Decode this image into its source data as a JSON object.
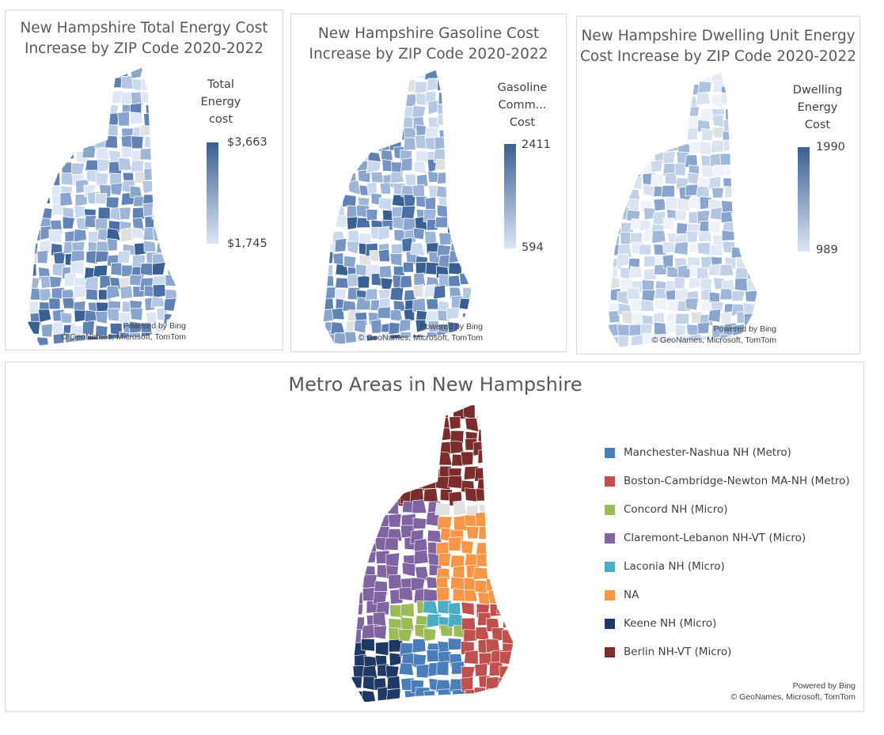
{
  "maps": [
    {
      "title_line1": "New Hampshire Total Energy Cost",
      "title_line2": "Increase by ZIP Code 2020-2022",
      "legend_line1": "Total",
      "legend_line2": "Energy",
      "legend_line3": "cost",
      "legend_max": "$3,663",
      "legend_min": "$1,745",
      "credit_line1": "Powered by Bing",
      "credit_line2": "© GeoNames, Microsoft, TomTom"
    },
    {
      "title_line1": "New Hampshire Gasoline Cost",
      "title_line2": "Increase by ZIP Code 2020-2022",
      "legend_line1": "Gasoline",
      "legend_line2": "Comm...",
      "legend_line3": "Cost",
      "legend_max": "2411",
      "legend_min": "594",
      "credit_line1": "Powered by Bing",
      "credit_line2": "© GeoNames, Microsoft, TomTom"
    },
    {
      "title_line1": "New Hampshire Dwelling Unit Energy",
      "title_line2": "Cost Increase by ZIP Code 2020-2022",
      "legend_line1": "Dwelling",
      "legend_line2": "Energy",
      "legend_line3": "Cost",
      "legend_max": "1990",
      "legend_min": "989",
      "credit_line1": "Powered by Bing",
      "credit_line2": "© GeoNames, Microsoft, TomTom"
    }
  ],
  "metro": {
    "title": "Metro Areas in New Hampshire",
    "legend": [
      {
        "label": "Manchester-Nashua NH (Metro)",
        "color": "#4a7ebb"
      },
      {
        "label": "Boston-Cambridge-Newton MA-NH (Metro)",
        "color": "#c0504d"
      },
      {
        "label": "Concord NH (Micro)",
        "color": "#9bbb59"
      },
      {
        "label": "Claremont-Lebanon NH-VT (Micro)",
        "color": "#8064a2"
      },
      {
        "label": "Laconia NH (Micro)",
        "color": "#4bacc6"
      },
      {
        "label": "NA",
        "color": "#f79646"
      },
      {
        "label": "Keene NH (Micro)",
        "color": "#1f3864"
      },
      {
        "label": "Berlin NH-VT (Micro)",
        "color": "#7b2c2c"
      }
    ],
    "credit_line1": "Powered by Bing",
    "credit_line2": "© GeoNames, Microsoft, TomTom"
  },
  "colors": {
    "ramp_dark": "#3a5f93",
    "ramp_light": "#dce6f4",
    "no_data": "#e0e0e0"
  }
}
